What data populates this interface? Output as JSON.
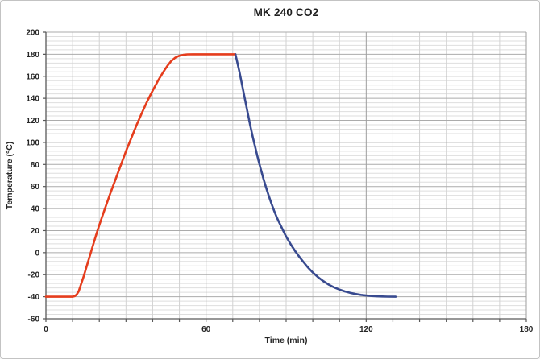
{
  "window": {
    "background": "#ffffff",
    "border_color": "#c3c3c3"
  },
  "chart_data": {
    "type": "line",
    "title": "MK 240 CO2",
    "xlabel": "Time (min)",
    "ylabel": "Temperature (°C)",
    "xlim": [
      0,
      180
    ],
    "ylim": [
      -60,
      200
    ],
    "x_major": 60,
    "x_minor": 10,
    "y_major": 20,
    "y_minor": 4,
    "grid": true,
    "legend": "none",
    "x_tick_labels": [
      "0",
      "60",
      "120",
      "180"
    ],
    "y_tick_labels": [
      "200",
      "180",
      "160",
      "140",
      "120",
      "100",
      "80",
      "60",
      "40",
      "20",
      "0",
      "-20",
      "-40",
      "-60"
    ],
    "colors": {
      "heating": "#e53d1d",
      "cooling": "#384a8f",
      "grid_minor_h": "#dedede",
      "grid_major_h": "#ababab",
      "grid_minor_v": "#d2d2d2",
      "grid_major_v": "#9e9e9e",
      "axis": "#595959",
      "tick_text": "#262626"
    },
    "series": [
      {
        "name": "heating",
        "color_key": "heating",
        "points": [
          [
            0,
            -40
          ],
          [
            10,
            -40
          ],
          [
            10.8,
            -39.5
          ],
          [
            11.5,
            -38
          ],
          [
            12.3,
            -35
          ],
          [
            13,
            -30
          ],
          [
            14,
            -22.5
          ],
          [
            15,
            -14.5
          ],
          [
            16,
            -6.5
          ],
          [
            17,
            1.5
          ],
          [
            18,
            9.5
          ],
          [
            19,
            17.5
          ],
          [
            20,
            25
          ],
          [
            22,
            39
          ],
          [
            24,
            53
          ],
          [
            26,
            66
          ],
          [
            28,
            79
          ],
          [
            30,
            92
          ],
          [
            32,
            104
          ],
          [
            34,
            116
          ],
          [
            36,
            127
          ],
          [
            38,
            137.5
          ],
          [
            40,
            147
          ],
          [
            42,
            156
          ],
          [
            44,
            164
          ],
          [
            45.5,
            169.5
          ],
          [
            47,
            174
          ],
          [
            48.5,
            177
          ],
          [
            50,
            178.7
          ],
          [
            51.5,
            179.5
          ],
          [
            53,
            179.9
          ],
          [
            55,
            180
          ],
          [
            71,
            180
          ]
        ]
      },
      {
        "name": "cooling",
        "color_key": "cooling",
        "points": [
          [
            71,
            180
          ],
          [
            71.5,
            175
          ],
          [
            72.5,
            164
          ],
          [
            73.5,
            152
          ],
          [
            74.5,
            140
          ],
          [
            75.5,
            128
          ],
          [
            76.5,
            116
          ],
          [
            77.5,
            105
          ],
          [
            78.5,
            95
          ],
          [
            79.5,
            85
          ],
          [
            80.5,
            76
          ],
          [
            81.5,
            67
          ],
          [
            82.5,
            59
          ],
          [
            83.5,
            51.5
          ],
          [
            84.5,
            44.5
          ],
          [
            85.5,
            38
          ],
          [
            86.5,
            32
          ],
          [
            87.5,
            27
          ],
          [
            88.5,
            22
          ],
          [
            89.5,
            17
          ],
          [
            90.5,
            12.5
          ],
          [
            92,
            6.5
          ],
          [
            93.5,
            1
          ],
          [
            95,
            -4
          ],
          [
            96.5,
            -8.5
          ],
          [
            98,
            -13
          ],
          [
            100,
            -18
          ],
          [
            102,
            -22.3
          ],
          [
            104,
            -26
          ],
          [
            106,
            -29
          ],
          [
            108,
            -31.5
          ],
          [
            110,
            -33.5
          ],
          [
            112,
            -35.2
          ],
          [
            114,
            -36.5
          ],
          [
            116,
            -37.5
          ],
          [
            118,
            -38.3
          ],
          [
            120,
            -38.9
          ],
          [
            122,
            -39.3
          ],
          [
            124,
            -39.6
          ],
          [
            126,
            -39.8
          ],
          [
            128,
            -39.9
          ],
          [
            131,
            -40
          ]
        ]
      }
    ]
  }
}
